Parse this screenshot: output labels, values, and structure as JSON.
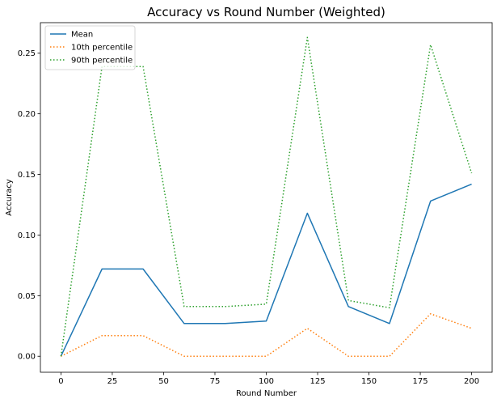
{
  "chart_data": {
    "type": "line",
    "title": "Accuracy vs Round Number (Weighted)",
    "xlabel": "Round Number",
    "ylabel": "Accuracy",
    "x": [
      0,
      20,
      40,
      60,
      80,
      100,
      120,
      140,
      160,
      180,
      200
    ],
    "xlim": [
      -10,
      210
    ],
    "ylim": [
      -0.0132,
      0.2752
    ],
    "xticks": [
      0,
      25,
      50,
      75,
      100,
      125,
      150,
      175,
      200
    ],
    "xtick_labels": [
      "0",
      "25",
      "50",
      "75",
      "100",
      "125",
      "150",
      "175",
      "200"
    ],
    "yticks": [
      0.0,
      0.05,
      0.1,
      0.15,
      0.2,
      0.25
    ],
    "ytick_labels": [
      "0.00",
      "0.05",
      "0.10",
      "0.15",
      "0.20",
      "0.25"
    ],
    "grid": false,
    "legend_position": "top-left",
    "series": [
      {
        "name": "Mean",
        "color": "#1f77b4",
        "style": "solid",
        "values": [
          0.0,
          0.072,
          0.072,
          0.027,
          0.027,
          0.029,
          0.118,
          0.041,
          0.027,
          0.128,
          0.142
        ]
      },
      {
        "name": "10th percentile",
        "color": "#ff7f0e",
        "style": "dotted",
        "values": [
          0.0,
          0.017,
          0.017,
          0.0,
          0.0,
          0.0,
          0.023,
          0.0,
          0.0,
          0.035,
          0.023
        ]
      },
      {
        "name": "90th percentile",
        "color": "#2ca02c",
        "style": "dotted",
        "values": [
          0.0,
          0.239,
          0.239,
          0.041,
          0.041,
          0.043,
          0.263,
          0.046,
          0.04,
          0.257,
          0.151
        ]
      }
    ]
  }
}
